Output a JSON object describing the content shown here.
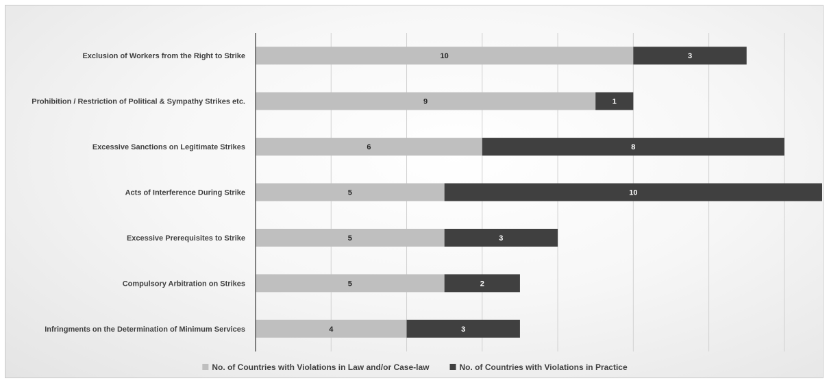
{
  "chart_data": {
    "type": "bar",
    "orientation": "horizontal",
    "stacked": true,
    "categories": [
      "Exclusion of Workers from the Right to Strike",
      "Prohibition / Restriction of Political & Sympathy Strikes etc.",
      "Excessive Sanctions on Legitimate Strikes",
      "Acts of Interference During Strike",
      "Excessive Prerequisites to Strike",
      "Compulsory Arbitration on Strikes",
      "Infringments on the Determination of Minimum Services"
    ],
    "series": [
      {
        "name": "No. of Countries with Violations in Law and/or Case-law",
        "values": [
          10,
          9,
          6,
          5,
          5,
          5,
          4
        ],
        "color": "#bfbfbf"
      },
      {
        "name": "No. of Countries with Violations in Practice",
        "values": [
          3,
          1,
          8,
          10,
          3,
          2,
          3
        ],
        "color": "#404040"
      }
    ],
    "xlim": [
      0,
      15
    ],
    "x_tick_step": 2,
    "grid": true,
    "legend_position": "bottom",
    "data_labels": true
  }
}
